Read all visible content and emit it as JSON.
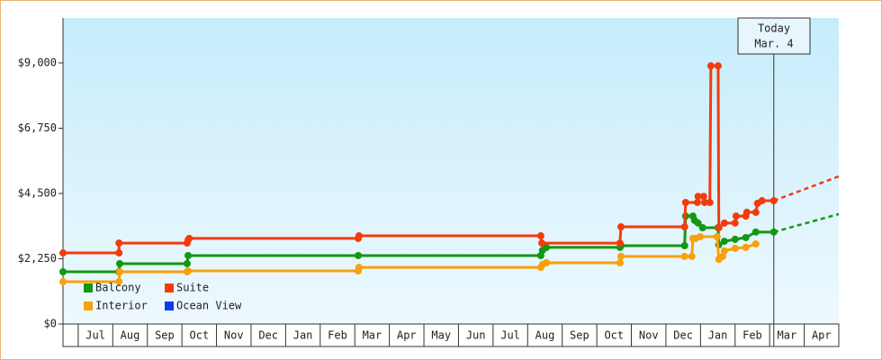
{
  "chart_data": {
    "type": "step-line",
    "xlim": [
      -0.44,
      22.0
    ],
    "ylim": [
      0,
      10550
    ],
    "yticks": [
      {
        "value": 0,
        "label": "$0"
      },
      {
        "value": 2250,
        "label": "$2,250"
      },
      {
        "value": 4500,
        "label": "$4,500"
      },
      {
        "value": 6750,
        "label": "$6,750"
      },
      {
        "value": 9000,
        "label": "$9,000"
      }
    ],
    "xticks": [
      {
        "value": 0.5,
        "label": "Jul"
      },
      {
        "value": 1.5,
        "label": "Aug"
      },
      {
        "value": 2.5,
        "label": "Sep"
      },
      {
        "value": 3.5,
        "label": "Oct"
      },
      {
        "value": 4.5,
        "label": "Nov"
      },
      {
        "value": 5.5,
        "label": "Dec"
      },
      {
        "value": 6.5,
        "label": "Jan"
      },
      {
        "value": 7.5,
        "label": "Feb"
      },
      {
        "value": 8.5,
        "label": "Mar"
      },
      {
        "value": 9.5,
        "label": "Apr"
      },
      {
        "value": 10.5,
        "label": "May"
      },
      {
        "value": 11.5,
        "label": "Jun"
      },
      {
        "value": 12.5,
        "label": "Jul"
      },
      {
        "value": 13.5,
        "label": "Aug"
      },
      {
        "value": 14.5,
        "label": "Sep"
      },
      {
        "value": 15.5,
        "label": "Oct"
      },
      {
        "value": 16.5,
        "label": "Nov"
      },
      {
        "value": 17.5,
        "label": "Dec"
      },
      {
        "value": 18.5,
        "label": "Jan"
      },
      {
        "value": 19.5,
        "label": "Feb"
      },
      {
        "value": 20.5,
        "label": "Mar"
      },
      {
        "value": 21.5,
        "label": "Apr"
      }
    ],
    "annotation": {
      "lines": [
        "Today",
        "Mar. 4"
      ],
      "x": 20.12
    },
    "series": [
      {
        "name": "Balcony",
        "color": "#129812",
        "x": [
          -0.44,
          1.18,
          1.2,
          3.15,
          3.18,
          8.1,
          13.38,
          13.43,
          13.54,
          15.67,
          15.7,
          17.54,
          17.57,
          17.78,
          17.83,
          17.93,
          18.06,
          18.51,
          18.53,
          18.69,
          19.0,
          19.31,
          19.6,
          20.12
        ],
        "values": [
          1800,
          1800,
          2080,
          2080,
          2360,
          2360,
          2360,
          2540,
          2640,
          2640,
          2700,
          2700,
          3720,
          3720,
          3570,
          3480,
          3320,
          3320,
          2730,
          2850,
          2920,
          2980,
          3170,
          3170
        ],
        "forecast": {
          "x": [
            20.12,
            22.0
          ],
          "values": [
            3170,
            3790
          ]
        }
      },
      {
        "name": "Suite",
        "color": "#f23c0c",
        "x": [
          -0.44,
          1.18,
          1.18,
          3.15,
          3.18,
          3.21,
          8.1,
          8.12,
          13.38,
          13.41,
          15.67,
          15.7,
          17.54,
          17.57,
          17.91,
          17.93,
          18.09,
          18.12,
          18.27,
          18.3,
          18.51,
          18.53,
          18.69,
          19.0,
          19.03,
          19.31,
          19.34,
          19.6,
          19.65,
          19.78,
          20.12
        ],
        "values": [
          2450,
          2450,
          2790,
          2790,
          2900,
          2950,
          2950,
          3040,
          3040,
          2790,
          2790,
          3350,
          3350,
          4190,
          4190,
          4400,
          4400,
          4190,
          4190,
          8900,
          8900,
          3320,
          3480,
          3480,
          3720,
          3720,
          3850,
          3850,
          4160,
          4250,
          4250
        ],
        "forecast": {
          "x": [
            20.12,
            22.0
          ],
          "values": [
            4250,
            5090
          ]
        }
      },
      {
        "name": "Interior",
        "color": "#f8a10a",
        "x": [
          -0.44,
          1.18,
          1.2,
          3.15,
          3.18,
          8.1,
          8.12,
          13.38,
          13.43,
          13.54,
          15.67,
          15.7,
          17.54,
          17.75,
          17.78,
          17.86,
          17.99,
          18.48,
          18.53,
          18.64,
          18.69,
          19.0,
          19.31,
          19.6
        ],
        "values": [
          1460,
          1460,
          1800,
          1800,
          1830,
          1830,
          1950,
          1950,
          2050,
          2110,
          2110,
          2330,
          2330,
          2330,
          2950,
          2950,
          3010,
          3010,
          2230,
          2330,
          2520,
          2610,
          2640,
          2760
        ]
      },
      {
        "name": "Ocean View",
        "color": "#0a3cf2",
        "x": [],
        "values": []
      }
    ]
  }
}
